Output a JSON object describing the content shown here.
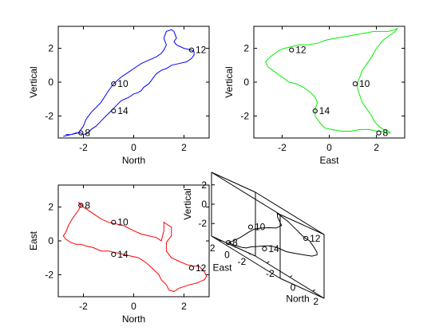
{
  "chart_data": [
    {
      "type": "line",
      "xlabel": "North",
      "ylabel": "Vertical",
      "xlim": [
        -3,
        3
      ],
      "ylim": [
        -3.3,
        3.3
      ],
      "xticks": [
        -2,
        0,
        2
      ],
      "yticks": [
        -2,
        0,
        2
      ],
      "color": "#0000ff",
      "series": [
        {
          "x": [
            -2.8,
            -2.5,
            -2.2,
            -2.0,
            -1.9,
            -1.7,
            -1.3,
            -1.0,
            -0.8,
            -0.5,
            -0.2,
            0.0,
            0.3,
            0.6,
            0.9,
            1.1,
            1.2,
            1.3,
            1.2,
            1.3,
            1.5,
            1.6,
            1.7,
            1.6,
            1.7,
            2.0,
            2.3,
            2.4,
            2.4,
            2.3,
            2.1,
            1.8,
            1.5,
            1.3,
            1.1,
            0.9,
            0.8,
            0.7,
            0.6,
            0.4,
            0.3,
            0.2,
            0.0,
            -0.2,
            -0.5,
            -0.7,
            -0.9,
            -1.1,
            -1.3,
            -1.5,
            -1.7,
            -1.8,
            -2.0,
            -2.1,
            -2.3,
            -2.5,
            -2.7
          ],
          "y": [
            -3.2,
            -3.1,
            -3.0,
            -2.6,
            -2.2,
            -1.8,
            -1.2,
            -0.5,
            -0.1,
            0.3,
            0.6,
            0.8,
            1.1,
            1.3,
            1.5,
            1.7,
            1.9,
            2.2,
            2.6,
            3.0,
            3.1,
            3.0,
            2.6,
            2.4,
            2.2,
            2.0,
            1.9,
            1.8,
            1.6,
            1.4,
            1.2,
            1.1,
            1.0,
            0.8,
            0.7,
            0.5,
            0.3,
            0.1,
            -0.1,
            -0.3,
            -0.5,
            -0.6,
            -0.7,
            -0.9,
            -1.1,
            -1.4,
            -1.7,
            -2.0,
            -2.3,
            -2.6,
            -2.8,
            -3.0,
            -3.1,
            -3.0,
            -3.0,
            -3.1,
            -3.1
          ]
        }
      ],
      "annotations": [
        {
          "label": "8",
          "x": -2.1,
          "y": -3.0
        },
        {
          "label": "10",
          "x": -0.8,
          "y": -0.1
        },
        {
          "label": "12",
          "x": 2.3,
          "y": 1.9
        },
        {
          "label": "14",
          "x": -0.8,
          "y": -1.7
        }
      ]
    },
    {
      "type": "line",
      "xlabel": "East",
      "ylabel": "Vertical",
      "xlim": [
        -3.2,
        3.2
      ],
      "ylim": [
        -3.3,
        3.3
      ],
      "xticks": [
        -2,
        0,
        2
      ],
      "yticks": [
        -2,
        0,
        2
      ],
      "color": "#00ee00",
      "series": [
        {
          "x": [
            2.6,
            2.4,
            2.2,
            2.0,
            1.7,
            1.3,
            0.9,
            0.5,
            0.1,
            -0.2,
            -0.4,
            -0.6,
            -0.6,
            -0.5,
            -0.6,
            -0.8,
            -1.1,
            -1.4,
            -1.7,
            -2.0,
            -2.3,
            -2.6,
            -2.7,
            -2.5,
            -2.3,
            -2.1,
            -1.9,
            -1.6,
            -1.3,
            -0.9,
            -0.5,
            -0.1,
            0.3,
            0.7,
            1.1,
            1.5,
            1.9,
            2.2,
            2.5,
            2.8,
            2.9,
            2.8,
            2.6,
            2.3,
            2.0,
            1.8,
            1.6,
            1.4,
            1.3,
            1.2,
            1.2,
            1.3,
            1.4,
            1.6,
            1.8,
            1.9,
            2.1,
            2.3,
            2.5,
            2.6
          ],
          "y": [
            -3.0,
            -3.0,
            -2.9,
            -2.9,
            -2.8,
            -2.8,
            -2.9,
            -2.9,
            -2.8,
            -2.7,
            -2.4,
            -2.0,
            -1.6,
            -1.2,
            -0.9,
            -0.6,
            -0.3,
            -0.1,
            0.0,
            0.3,
            0.6,
            0.9,
            1.2,
            1.5,
            1.7,
            1.9,
            2.0,
            2.1,
            2.2,
            2.2,
            2.3,
            2.5,
            2.6,
            2.7,
            2.8,
            2.9,
            3.0,
            3.0,
            3.0,
            3.1,
            3.2,
            3.0,
            2.8,
            2.5,
            2.0,
            1.5,
            1.1,
            0.7,
            0.3,
            0.0,
            -0.4,
            -0.8,
            -1.2,
            -1.6,
            -2.0,
            -2.3,
            -2.6,
            -2.8,
            -2.9,
            -3.0
          ]
        }
      ],
      "annotations": [
        {
          "label": "8",
          "x": 2.1,
          "y": -3.0
        },
        {
          "label": "10",
          "x": 1.1,
          "y": -0.1
        },
        {
          "label": "12",
          "x": -1.6,
          "y": 1.9
        },
        {
          "label": "14",
          "x": -0.6,
          "y": -1.7
        }
      ]
    },
    {
      "type": "line",
      "xlabel": "North",
      "ylabel": "East",
      "xlim": [
        -3,
        3
      ],
      "ylim": [
        -3.3,
        3.3
      ],
      "xticks": [
        -2,
        0,
        2
      ],
      "yticks": [
        -2,
        0,
        2
      ],
      "color": "#ff0000",
      "series": [
        {
          "x": [
            -2.7,
            -2.6,
            -2.4,
            -2.2,
            -2.1,
            -2.2,
            -2.0,
            -1.6,
            -1.3,
            -1.0,
            -0.7,
            -0.4,
            0.0,
            0.3,
            0.6,
            0.9,
            1.1,
            1.2,
            1.2,
            1.5,
            1.5,
            1.3,
            1.3,
            1.5,
            1.8,
            2.1,
            2.4,
            2.6,
            2.8,
            2.9,
            2.8,
            2.5,
            2.2,
            2.0,
            1.8,
            1.6,
            1.4,
            1.3,
            1.1,
            1.0,
            0.8,
            0.5,
            0.2,
            -0.1,
            -0.4,
            -0.7,
            -1.0,
            -1.3,
            -1.6,
            -1.9,
            -2.1,
            -2.3,
            -2.5,
            -2.6,
            -2.7,
            -2.8,
            -2.7
          ],
          "y": [
            0.5,
            0.9,
            1.4,
            1.8,
            2.1,
            2.3,
            2.0,
            1.6,
            1.3,
            1.1,
            1.0,
            0.9,
            0.6,
            0.4,
            0.3,
            0.2,
            0.0,
            0.6,
            1.1,
            0.8,
            0.3,
            -0.1,
            -0.6,
            -1.0,
            -1.2,
            -1.4,
            -1.5,
            -1.5,
            -1.8,
            -2.1,
            -2.3,
            -2.5,
            -2.6,
            -2.7,
            -2.8,
            -3.0,
            -2.9,
            -2.6,
            -2.3,
            -2.0,
            -1.7,
            -1.3,
            -1.0,
            -0.9,
            -0.8,
            -0.7,
            -0.6,
            -0.6,
            -0.4,
            -0.3,
            -0.2,
            -0.2,
            -0.1,
            0.0,
            0.1,
            0.3,
            0.5
          ]
        }
      ],
      "annotations": [
        {
          "label": "8",
          "x": -2.1,
          "y": 2.1
        },
        {
          "label": "10",
          "x": -0.8,
          "y": 1.1
        },
        {
          "label": "12",
          "x": 2.3,
          "y": -1.6
        },
        {
          "label": "14",
          "x": -0.8,
          "y": -0.8
        }
      ]
    },
    {
      "type": "line3d",
      "xlabel": "North",
      "ylabel": "East",
      "zlabel": "Vertical",
      "xlim": [
        -3,
        3
      ],
      "ylim": [
        -3,
        3
      ],
      "zlim": [
        -3.3,
        3.3
      ],
      "xticks": [
        -2,
        0,
        2
      ],
      "yticks": [
        -2,
        0,
        2
      ],
      "zticks": [
        -2,
        0,
        2
      ],
      "color": "#000000",
      "series": [
        {
          "x": [
            -2.1,
            -1.9,
            -1.5,
            -1.0,
            -0.6,
            -0.2,
            0.3,
            0.8,
            1.2,
            1.3,
            1.4,
            1.6,
            1.9,
            2.2,
            2.4,
            2.5,
            2.6,
            2.8,
            2.9,
            2.7,
            2.4,
            2.0,
            1.5,
            1.0,
            0.6,
            0.2,
            -0.3,
            -0.8,
            -1.3,
            -1.7,
            -2.0,
            -2.3,
            -2.5,
            -2.6,
            -2.5,
            -2.3,
            -2.1
          ],
          "y": [
            2.1,
            1.8,
            1.4,
            1.1,
            0.9,
            0.6,
            0.3,
            0.1,
            0.0,
            0.7,
            0.9,
            -0.2,
            -0.9,
            -1.3,
            -1.5,
            -1.5,
            -1.6,
            -1.9,
            -2.2,
            -2.5,
            -2.7,
            -2.9,
            -2.8,
            -2.2,
            -1.6,
            -1.1,
            -0.9,
            -0.8,
            -0.6,
            -0.4,
            -0.2,
            -0.1,
            0.1,
            0.5,
            1.0,
            1.6,
            2.1
          ],
          "z": [
            -3.0,
            -2.6,
            -1.8,
            -0.8,
            -0.1,
            0.4,
            0.9,
            1.3,
            1.9,
            2.6,
            3.0,
            2.7,
            2.3,
            2.0,
            1.9,
            1.9,
            1.9,
            1.5,
            1.1,
            0.8,
            0.6,
            0.3,
            0.0,
            -0.4,
            -0.7,
            -0.8,
            -1.0,
            -1.4,
            -1.9,
            -2.3,
            -2.7,
            -2.9,
            -3.0,
            -3.1,
            -3.1,
            -3.0,
            -3.0
          ]
        }
      ],
      "annotations": [
        {
          "label": "8",
          "x": -2.1,
          "y": 2.1,
          "z": -3.0
        },
        {
          "label": "10",
          "x": -0.8,
          "y": 1.1,
          "z": -0.1
        },
        {
          "label": "12",
          "x": 2.3,
          "y": -1.6,
          "z": 1.9
        },
        {
          "label": "14",
          "x": -0.8,
          "y": -0.8,
          "z": -1.7
        }
      ]
    }
  ]
}
